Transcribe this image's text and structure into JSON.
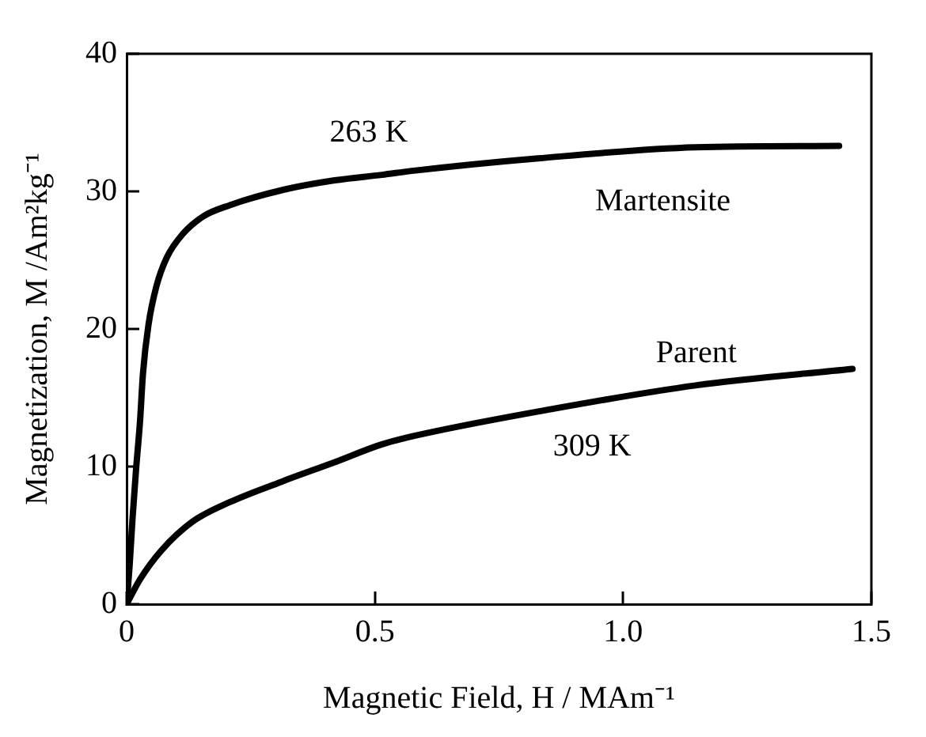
{
  "chart_data": {
    "type": "line",
    "xlabel": "Magnetic Field, H / MAm⁻¹",
    "ylabel": "Magnetization, M /Am²kg⁻¹",
    "xlim": [
      0,
      1.5
    ],
    "xticks": [
      0,
      0.5,
      {
        "value": 1,
        "label": "1.0"
      },
      1.5
    ],
    "ylim": [
      0,
      40
    ],
    "yticks": [
      0,
      10,
      20,
      30,
      40
    ],
    "grid": false,
    "legend": false,
    "marker": "none",
    "line_style": "solid",
    "series": [
      {
        "color": "#000000",
        "x": [
          0,
          0.006,
          0.012,
          0.019,
          0.027,
          0.033,
          0.044,
          0.06,
          0.081,
          0.113,
          0.155,
          0.208,
          0.314,
          0.419,
          0.514,
          0.578,
          0.829,
          1.146,
          1.435
        ],
        "values": [
          0,
          2.8,
          6.3,
          9.8,
          13.3,
          16.8,
          20.3,
          23.1,
          25.2,
          26.9,
          28.2,
          29.0,
          30.1,
          30.8,
          31.2,
          31.5,
          32.4,
          33.2,
          33.3
        ]
      },
      {
        "color": "#000000",
        "x": [
          0,
          0.027,
          0.07,
          0.133,
          0.207,
          0.312,
          0.418,
          0.513,
          0.576,
          0.829,
          1.146,
          1.462
        ],
        "values": [
          0,
          1.8,
          3.9,
          6.0,
          7.4,
          8.9,
          10.3,
          11.6,
          12.2,
          14.0,
          15.9,
          17.1
        ]
      }
    ],
    "annotations": [
      "263 K",
      "Martensite",
      "Parent",
      "309 K"
    ]
  }
}
